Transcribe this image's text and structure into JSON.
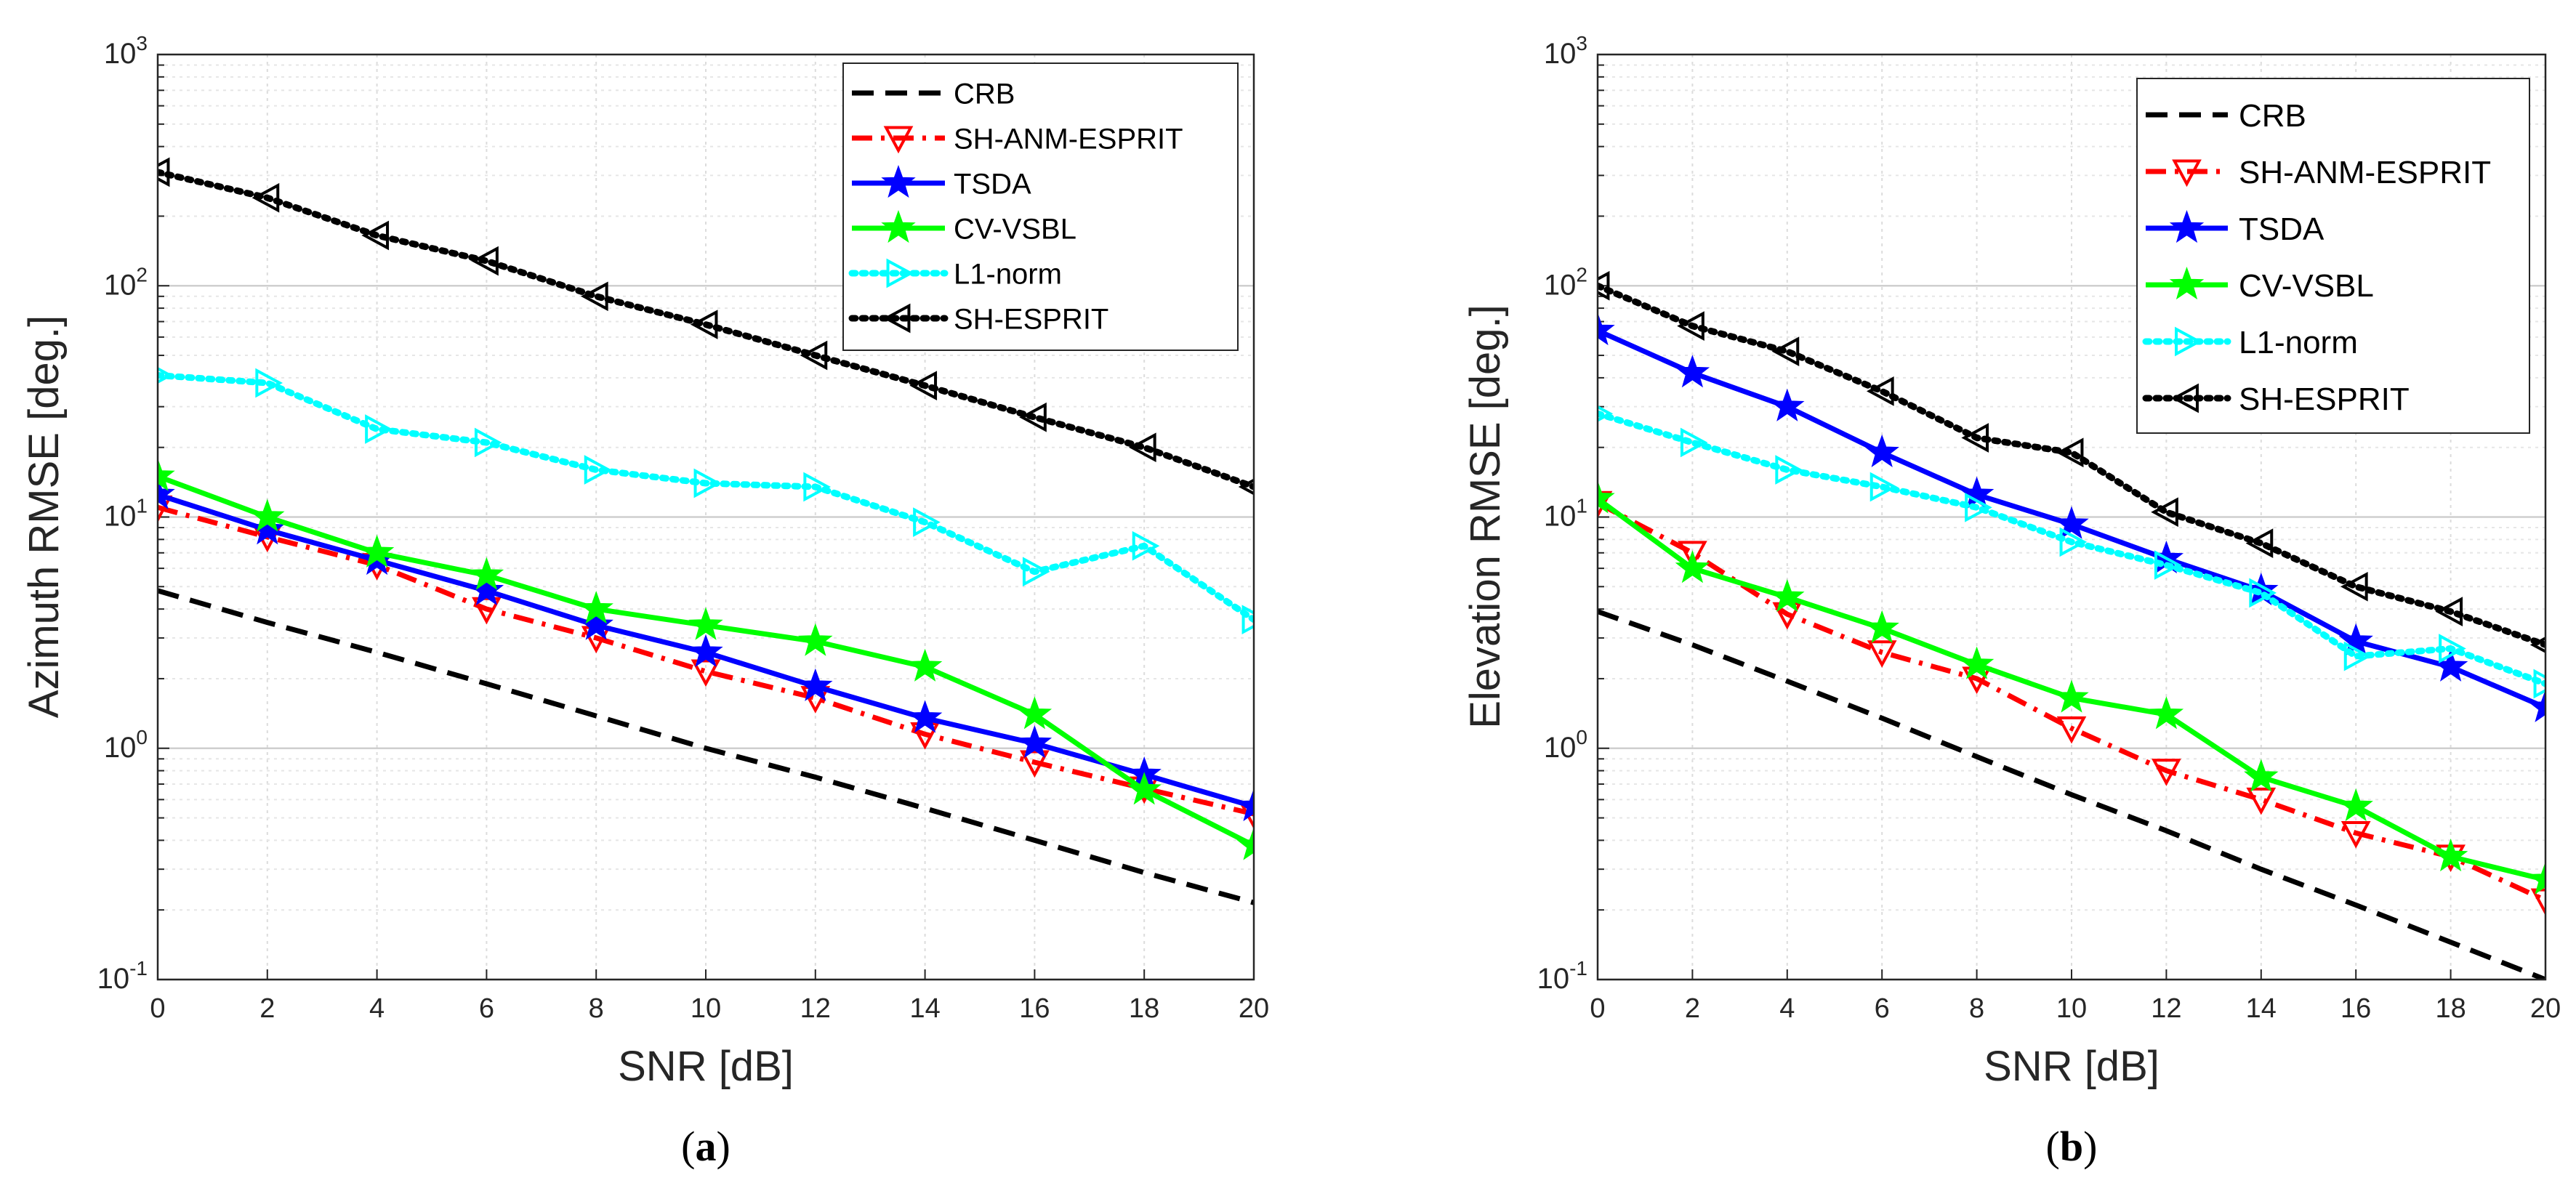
{
  "charts": [
    {
      "panel": "a",
      "caption_open": "(",
      "caption_letter": "a",
      "caption_close": ")",
      "xlabel": "SNR [dB]",
      "ylabel": "Azimuth RMSE [deg.]",
      "xticks": [
        0,
        2,
        4,
        6,
        8,
        10,
        12,
        14,
        16,
        18,
        20
      ],
      "legend_position": "top-right"
    },
    {
      "panel": "b",
      "caption_open": "(",
      "caption_letter": "b",
      "caption_close": ")",
      "xlabel": "SNR [dB]",
      "ylabel": "Elevation RMSE [deg.]",
      "xticks": [
        0,
        2,
        4,
        6,
        8,
        10,
        12,
        14,
        16,
        18,
        20
      ],
      "legend_position": "top-right"
    }
  ],
  "chart_data": [
    {
      "type": "line",
      "yscale": "log",
      "title": "",
      "xlabel": "SNR [dB]",
      "ylabel": "Azimuth RMSE [deg.]",
      "xlim": [
        0,
        20
      ],
      "ylim": [
        0.1,
        1000
      ],
      "grid": true,
      "x": [
        0,
        2,
        4,
        6,
        8,
        10,
        12,
        14,
        16,
        18,
        20
      ],
      "series": [
        {
          "name": "CRB",
          "values": [
            4.8,
            3.5,
            2.6,
            1.9,
            1.38,
            1.0,
            0.75,
            0.55,
            0.4,
            0.29,
            0.215
          ],
          "color": "#000000",
          "dash": "dashed",
          "marker": "none"
        },
        {
          "name": "SH-ANM-ESPRIT",
          "values": [
            11,
            8.2,
            6.2,
            4.0,
            3.0,
            2.15,
            1.65,
            1.15,
            0.87,
            0.67,
            0.52
          ],
          "color": "#ff0000",
          "dash": "dashdot",
          "marker": "triangle-down"
        },
        {
          "name": "TSDA",
          "values": [
            12.5,
            8.8,
            6.5,
            4.8,
            3.4,
            2.6,
            1.85,
            1.35,
            1.05,
            0.77,
            0.56
          ],
          "color": "#0000ff",
          "dash": "solid",
          "marker": "star"
        },
        {
          "name": "CV-VSBL",
          "values": [
            15,
            10,
            7.0,
            5.6,
            4.0,
            3.4,
            2.9,
            2.25,
            1.4,
            0.66,
            0.38
          ],
          "color": "#00ff00",
          "dash": "solid",
          "marker": "star"
        },
        {
          "name": "L1-norm",
          "values": [
            41,
            38,
            24,
            21,
            16,
            14,
            13.5,
            9.5,
            5.8,
            7.5,
            3.6
          ],
          "color": "#00ffff",
          "dash": "dotted",
          "marker": "triangle-right"
        },
        {
          "name": "SH-ESPRIT",
          "values": [
            310,
            240,
            165,
            128,
            90,
            68,
            50,
            37,
            27,
            20,
            13.5
          ],
          "color": "#000000",
          "dash": "dotted",
          "marker": "triangle-left"
        }
      ]
    },
    {
      "type": "line",
      "yscale": "log",
      "title": "",
      "xlabel": "SNR [dB]",
      "ylabel": "Elevation RMSE [deg.]",
      "xlim": [
        0,
        20
      ],
      "ylim": [
        0.1,
        1000
      ],
      "grid": true,
      "x": [
        0,
        2,
        4,
        6,
        8,
        10,
        12,
        14,
        16,
        18,
        20
      ],
      "series": [
        {
          "name": "CRB",
          "values": [
            3.9,
            2.8,
            1.95,
            1.35,
            0.92,
            0.63,
            0.44,
            0.3,
            0.21,
            0.145,
            0.1
          ],
          "color": "#000000",
          "dash": "dashed",
          "marker": "none"
        },
        {
          "name": "SH-ANM-ESPRIT",
          "values": [
            11.5,
            7.0,
            3.8,
            2.6,
            2.0,
            1.22,
            0.8,
            0.6,
            0.43,
            0.34,
            0.22
          ],
          "color": "#ff0000",
          "dash": "dashdot",
          "marker": "triangle-down"
        },
        {
          "name": "TSDA",
          "values": [
            64,
            42,
            30,
            19,
            12.5,
            9.3,
            6.6,
            4.8,
            2.9,
            2.25,
            1.5
          ],
          "color": "#0000ff",
          "dash": "solid",
          "marker": "star"
        },
        {
          "name": "CV-VSBL",
          "values": [
            12,
            6.0,
            4.5,
            3.3,
            2.3,
            1.65,
            1.4,
            0.75,
            0.56,
            0.34,
            0.27
          ],
          "color": "#00ff00",
          "dash": "solid",
          "marker": "star"
        },
        {
          "name": "L1-norm",
          "values": [
            28,
            21,
            16,
            13.5,
            11,
            7.8,
            6.2,
            4.7,
            2.5,
            2.7,
            1.9
          ],
          "color": "#00ffff",
          "dash": "dotted",
          "marker": "triangle-right"
        },
        {
          "name": "SH-ESPRIT",
          "values": [
            100,
            67,
            52,
            35,
            22,
            19,
            10.5,
            7.7,
            5.0,
            3.9,
            2.8
          ],
          "color": "#000000",
          "dash": "dotted",
          "marker": "triangle-left"
        }
      ]
    }
  ]
}
